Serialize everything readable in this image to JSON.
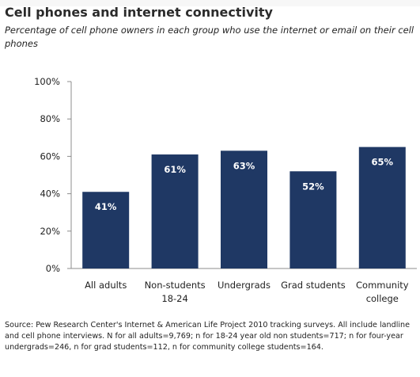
{
  "title": "Cell phones and internet connectivity",
  "subtitle": "Percentage of cell phone owners in each group who use the internet or email on their cell phones",
  "source": "Source: Pew Research Center's Internet & American Life Project 2010 tracking surveys. All include landline and cell phone interviews. N for all adults=9,769; n for 18-24 year old non students=717; n for four-year undergrads=246, n for grad students=112, n for community college students=164.",
  "colors": {
    "bar": "#1f3864",
    "bar_label": "#ffffff",
    "axis": "#8c8c8c",
    "text": "#222222"
  },
  "chart_data": {
    "type": "bar",
    "categories": [
      [
        "All adults"
      ],
      [
        "Non-students",
        "18-24"
      ],
      [
        "Undergrads"
      ],
      [
        "Grad students"
      ],
      [
        "Community",
        "college"
      ]
    ],
    "values": [
      41,
      61,
      63,
      52,
      65
    ],
    "data_labels": [
      "41%",
      "61%",
      "63%",
      "52%",
      "65%"
    ],
    "ylim": [
      0,
      100
    ],
    "yticks": [
      0,
      20,
      40,
      60,
      80,
      100
    ],
    "ytick_labels": [
      "0%",
      "20%",
      "40%",
      "60%",
      "80%",
      "100%"
    ],
    "xlabel": "",
    "ylabel": "",
    "grid": false,
    "legend": "none"
  }
}
